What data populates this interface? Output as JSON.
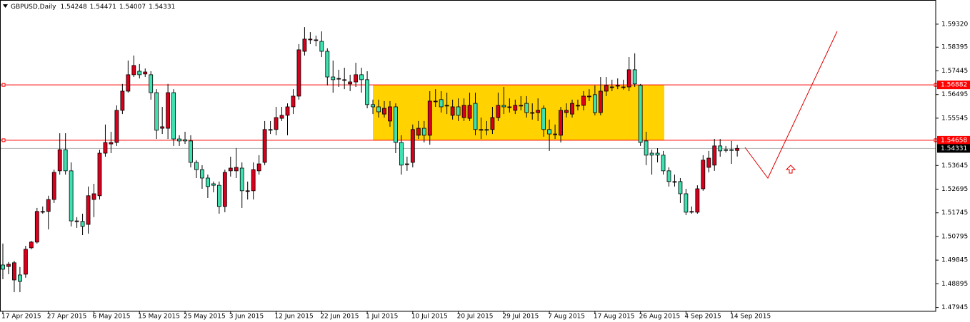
{
  "chart_data": {
    "type": "candlestick",
    "title": "GBPUSD,Daily",
    "categories": [
      "17 Apr 2015",
      null,
      null,
      null,
      null,
      null,
      null,
      null,
      "27 Apr 2015",
      null,
      null,
      null,
      null,
      null,
      null,
      null,
      "6 May 2015",
      null,
      null,
      null,
      null,
      null,
      null,
      null,
      "15 May 2015",
      null,
      null,
      null,
      null,
      null,
      null,
      null,
      "25 May 2015",
      null,
      null,
      null,
      null,
      null,
      null,
      null,
      "3 Jun 2015",
      null,
      null,
      null,
      null,
      null,
      null,
      null,
      "12 Jun 2015",
      null,
      null,
      null,
      null,
      null,
      null,
      null,
      "22 Jun 2015",
      null,
      null,
      null,
      null,
      null,
      null,
      null,
      "1 Jul 2015",
      null,
      null,
      null,
      null,
      null,
      null,
      null,
      "10 Jul 2015",
      null,
      null,
      null,
      null,
      null,
      null,
      null,
      "20 Jul 2015",
      null,
      null,
      null,
      null,
      null,
      null,
      null,
      "29 Jul 2015",
      null,
      null,
      null,
      null,
      null,
      null,
      null,
      "7 Aug 2015",
      null,
      null,
      null,
      null,
      null,
      null,
      null,
      "17 Aug 2015",
      null,
      null,
      null,
      null,
      null,
      null,
      null,
      "26 Aug 2015",
      null,
      null,
      null,
      null,
      null,
      null,
      null,
      "4 Sep 2015",
      null,
      null,
      null,
      null,
      null,
      null,
      null,
      "14 Sep 2015",
      null
    ],
    "open": [
      1.4965,
      1.4959,
      1.4905,
      1.4925,
      1.4928,
      1.5034,
      1.5057,
      1.5177,
      1.518,
      1.5228,
      1.5343,
      1.5428,
      1.5343,
      1.514,
      1.514,
      1.5128,
      1.5228,
      1.5243,
      1.5414,
      1.5451,
      1.5457,
      1.5586,
      1.5663,
      1.5729,
      1.5743,
      1.5732,
      1.5729,
      1.5657,
      1.5514,
      1.5514,
      1.5657,
      1.5471,
      1.5468,
      1.5463,
      1.5377,
      1.5348,
      1.5314,
      1.5291,
      1.5285,
      1.52,
      1.5343,
      1.5343,
      1.5354,
      1.5263,
      1.5263,
      1.5343,
      1.5377,
      1.5509,
      1.5509,
      1.5554,
      1.5566,
      1.56,
      1.5643,
      1.5823,
      1.5869,
      1.5869,
      1.5863,
      1.5823,
      1.572,
      1.5714,
      1.5709,
      1.5692,
      1.57,
      1.5729,
      1.5709,
      1.5609,
      1.56,
      1.5571,
      1.5543,
      1.56,
      1.5457,
      1.5371,
      1.5377,
      1.5486,
      1.5514,
      1.5486,
      1.5623,
      1.5629,
      1.5606,
      1.5566,
      1.56,
      1.5557,
      1.5554,
      1.5614,
      1.5509,
      1.5509,
      1.5509,
      1.5557,
      1.5606,
      1.56,
      1.5586,
      1.5606,
      1.5614,
      1.5577,
      1.5577,
      1.5594,
      1.5509,
      1.5491,
      1.5486,
      1.5577,
      1.5571,
      1.5606,
      1.5606,
      1.5643,
      1.5649,
      1.5577,
      1.5663,
      1.568,
      1.5686,
      1.568,
      1.568,
      1.5749,
      1.5686,
      1.5463,
      1.5414,
      1.5414,
      1.5406,
      1.5343,
      1.53,
      1.53,
      1.5251,
      1.5177,
      1.5177,
      1.5271,
      1.5357,
      1.5366,
      1.5443,
      1.5428,
      1.5428,
      1.54248
    ],
    "high": [
      1.5051,
      1.4977,
      1.4982,
      1.4957,
      1.5042,
      1.5062,
      1.5194,
      1.52,
      1.5243,
      1.5348,
      1.5494,
      1.5494,
      1.5377,
      1.5157,
      1.5171,
      1.528,
      1.5291,
      1.5428,
      1.5529,
      1.55,
      1.5606,
      1.5692,
      1.5786,
      1.5806,
      1.5772,
      1.5754,
      1.5743,
      1.5671,
      1.56,
      1.5692,
      1.5671,
      1.5486,
      1.55,
      1.5486,
      1.5386,
      1.5366,
      1.5328,
      1.53,
      1.53,
      1.5348,
      1.54,
      1.5434,
      1.5377,
      1.53,
      1.5377,
      1.5406,
      1.5543,
      1.5543,
      1.56,
      1.56,
      1.5614,
      1.5671,
      1.5852,
      1.592,
      1.59,
      1.5886,
      1.5903,
      1.5835,
      1.5786,
      1.5749,
      1.5757,
      1.5729,
      1.5777,
      1.5757,
      1.5743,
      1.5629,
      1.5629,
      1.5623,
      1.5623,
      1.5614,
      1.5486,
      1.54,
      1.5529,
      1.5543,
      1.5543,
      1.5663,
      1.5671,
      1.5663,
      1.5657,
      1.5629,
      1.5634,
      1.5634,
      1.5657,
      1.5657,
      1.5557,
      1.5543,
      1.56,
      1.5657,
      1.568,
      1.5634,
      1.5629,
      1.5643,
      1.5643,
      1.5614,
      1.5634,
      1.5606,
      1.5549,
      1.5529,
      1.56,
      1.5614,
      1.5629,
      1.5629,
      1.5663,
      1.5671,
      1.5686,
      1.572,
      1.572,
      1.5709,
      1.5714,
      1.5709,
      1.58,
      1.5815,
      1.5692,
      1.55,
      1.5428,
      1.5434,
      1.5423,
      1.5357,
      1.5328,
      1.5314,
      1.5271,
      1.52,
      1.5285,
      1.5406,
      1.5423,
      1.5471,
      1.5471,
      1.5443,
      1.5463,
      1.54471
    ],
    "low": [
      1.4908,
      1.4928,
      1.4856,
      1.4856,
      1.4914,
      1.5028,
      1.5051,
      1.5171,
      1.5108,
      1.5214,
      1.5328,
      1.5328,
      1.512,
      1.5114,
      1.5085,
      1.5091,
      1.5157,
      1.5228,
      1.54,
      1.5414,
      1.5443,
      1.5571,
      1.5657,
      1.572,
      1.5714,
      1.572,
      1.5629,
      1.5471,
      1.5491,
      1.5471,
      1.5443,
      1.5443,
      1.5451,
      1.5357,
      1.5314,
      1.5271,
      1.5234,
      1.5257,
      1.5171,
      1.5177,
      1.532,
      1.5314,
      1.5194,
      1.5228,
      1.5228,
      1.5328,
      1.5366,
      1.5491,
      1.5486,
      1.5543,
      1.5486,
      1.5571,
      1.5629,
      1.5806,
      1.5852,
      1.5843,
      1.58,
      1.5686,
      1.5657,
      1.568,
      1.5671,
      1.5663,
      1.568,
      1.5657,
      1.5594,
      1.5571,
      1.5557,
      1.5557,
      1.552,
      1.5414,
      1.5328,
      1.5343,
      1.5357,
      1.5471,
      1.5457,
      1.5448,
      1.56,
      1.5577,
      1.5571,
      1.5549,
      1.5543,
      1.5543,
      1.5543,
      1.5486,
      1.5471,
      1.5486,
      1.5491,
      1.5543,
      1.5571,
      1.5577,
      1.5571,
      1.5586,
      1.5557,
      1.5549,
      1.5543,
      1.548,
      1.5423,
      1.5471,
      1.5457,
      1.5557,
      1.5557,
      1.5586,
      1.5586,
      1.5623,
      1.5566,
      1.5566,
      1.5643,
      1.5663,
      1.5671,
      1.5669,
      1.5663,
      1.568,
      1.5443,
      1.5366,
      1.5328,
      1.5377,
      1.5328,
      1.528,
      1.528,
      1.5214,
      1.5165,
      1.5171,
      1.5171,
      1.5263,
      1.5337,
      1.5343,
      1.54,
      1.5417,
      1.5371,
      1.54007
    ],
    "close": [
      1.4948,
      1.4968,
      1.4974,
      1.4899,
      1.5028,
      1.5057,
      1.518,
      1.518,
      1.5228,
      1.5337,
      1.5428,
      1.5343,
      1.5142,
      1.5142,
      1.512,
      1.5243,
      1.5251,
      1.5414,
      1.5457,
      1.5457,
      1.5586,
      1.5663,
      1.5729,
      1.5766,
      1.5729,
      1.574,
      1.5657,
      1.5506,
      1.552,
      1.5657,
      1.5471,
      1.5463,
      1.5463,
      1.5377,
      1.5348,
      1.5314,
      1.528,
      1.5285,
      1.52,
      1.5337,
      1.5354,
      1.5357,
      1.5263,
      1.5263,
      1.5348,
      1.5371,
      1.5509,
      1.5506,
      1.5557,
      1.5566,
      1.56,
      1.5643,
      1.5829,
      1.5872,
      1.5872,
      1.5869,
      1.5823,
      1.572,
      1.5709,
      1.5714,
      1.5709,
      1.57,
      1.5729,
      1.5709,
      1.5609,
      1.56,
      1.558,
      1.5594,
      1.56,
      1.5457,
      1.5366,
      1.5371,
      1.5509,
      1.5514,
      1.5486,
      1.5623,
      1.5623,
      1.56,
      1.5606,
      1.56,
      1.5566,
      1.5606,
      1.5606,
      1.5509,
      1.5509,
      1.5506,
      1.5557,
      1.5606,
      1.56,
      1.56,
      1.5606,
      1.5606,
      1.5577,
      1.5577,
      1.5586,
      1.5509,
      1.5491,
      1.5491,
      1.5586,
      1.5586,
      1.5614,
      1.5606,
      1.5643,
      1.5643,
      1.5577,
      1.5663,
      1.5686,
      1.568,
      1.5686,
      1.568,
      1.5749,
      1.5692,
      1.5457,
      1.5406,
      1.5406,
      1.5406,
      1.5343,
      1.53,
      1.53,
      1.5251,
      1.5177,
      1.518,
      1.5271,
      1.5386,
      1.5394,
      1.5443,
      1.5423,
      1.5425,
      1.5425,
      1.54331
    ],
    "up_color": "#d8001c",
    "down_color": "#40e0b0",
    "outline_color": "#000000",
    "ylim": [
      1.4779,
      1.6029
    ],
    "yticks": [
      {
        "value": 1.5932,
        "label": "1.59320"
      },
      {
        "value": 1.58395,
        "label": "1.58395"
      },
      {
        "value": 1.57445,
        "label": "1.57445"
      },
      {
        "value": 1.56495,
        "label": "1.56495"
      },
      {
        "value": 1.55545,
        "label": "1.55545"
      },
      {
        "value": 1.53645,
        "label": "1.53645"
      },
      {
        "value": 1.52695,
        "label": "1.52695"
      },
      {
        "value": 1.51745,
        "label": "1.51745"
      },
      {
        "value": 1.50795,
        "label": "1.50795"
      },
      {
        "value": 1.49845,
        "label": "1.49845"
      },
      {
        "value": 1.48895,
        "label": "1.48895"
      },
      {
        "value": 1.47945,
        "label": "1.47945"
      }
    ],
    "hlines": [
      {
        "value": 1.56882,
        "color": "#ff0000"
      },
      {
        "value": 1.54658,
        "color": "#ff0000"
      }
    ],
    "zone_color": "#ffd200",
    "grid": false
  }
}
